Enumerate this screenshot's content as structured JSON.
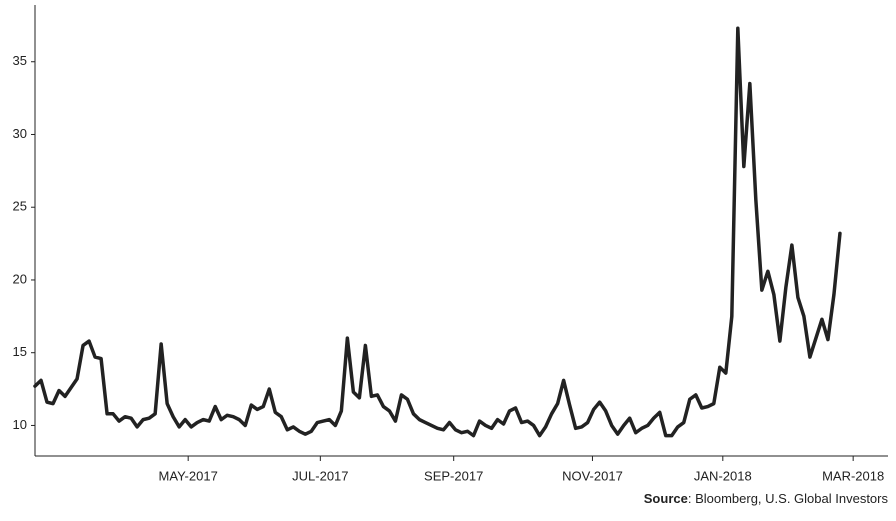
{
  "chart_data": {
    "type": "line",
    "series": [
      {
        "color": "#222222",
        "values": [
          12.7,
          13.1,
          11.6,
          11.5,
          12.4,
          12.0,
          12.6,
          13.2,
          15.5,
          15.8,
          14.7,
          14.6,
          10.8,
          10.8,
          10.3,
          10.6,
          10.5,
          9.9,
          10.4,
          10.5,
          10.8,
          15.6,
          11.5,
          10.6,
          9.9,
          10.4,
          9.9,
          10.2,
          10.4,
          10.3,
          11.3,
          10.4,
          10.7,
          10.6,
          10.4,
          10.0,
          11.4,
          11.1,
          11.3,
          12.5,
          10.9,
          10.6,
          9.7,
          9.9,
          9.6,
          9.4,
          9.6,
          10.2,
          10.3,
          10.4,
          10.0,
          11.0,
          16.0,
          12.3,
          11.9,
          15.5,
          12.0,
          12.1,
          11.3,
          11.0,
          10.3,
          12.1,
          11.8,
          10.8,
          10.4,
          10.2,
          10.0,
          9.8,
          9.7,
          10.2,
          9.7,
          9.5,
          9.6,
          9.3,
          10.3,
          10.0,
          9.8,
          10.4,
          10.1,
          11.0,
          11.2,
          10.2,
          10.3,
          10.0,
          9.3,
          9.9,
          10.8,
          11.5,
          13.1,
          11.4,
          9.8,
          9.9,
          10.2,
          11.1,
          11.6,
          11.0,
          10.0,
          9.4,
          10.0,
          10.5,
          9.5,
          9.8,
          10.0,
          10.5,
          10.9,
          9.3,
          9.3,
          9.9,
          10.2,
          11.8,
          12.1,
          11.2,
          11.3,
          11.5,
          14.0,
          13.6,
          17.5,
          37.3,
          27.8,
          33.5,
          25.5,
          19.3,
          20.6,
          19.0,
          15.8,
          19.5,
          22.4,
          18.8,
          17.5,
          14.7,
          16.0,
          17.3,
          15.9,
          19.0,
          23.2
        ]
      }
    ],
    "xlim": [
      0,
      142
    ],
    "xticks": [
      {
        "value": 25.5,
        "label": "MAY-2017"
      },
      {
        "value": 47.5,
        "label": "JUL-2017"
      },
      {
        "value": 69.7,
        "label": "SEP-2017"
      },
      {
        "value": 92.8,
        "label": "NOV-2017"
      },
      {
        "value": 114.5,
        "label": "JAN-2018"
      },
      {
        "value": 136.2,
        "label": "MAR-2018"
      }
    ],
    "ylim": [
      7.9,
      38.9
    ],
    "yticks": [
      10,
      15,
      20,
      25,
      30,
      35
    ],
    "source_label": "Source",
    "source_text": ": Bloomberg, U.S. Global Investors"
  }
}
